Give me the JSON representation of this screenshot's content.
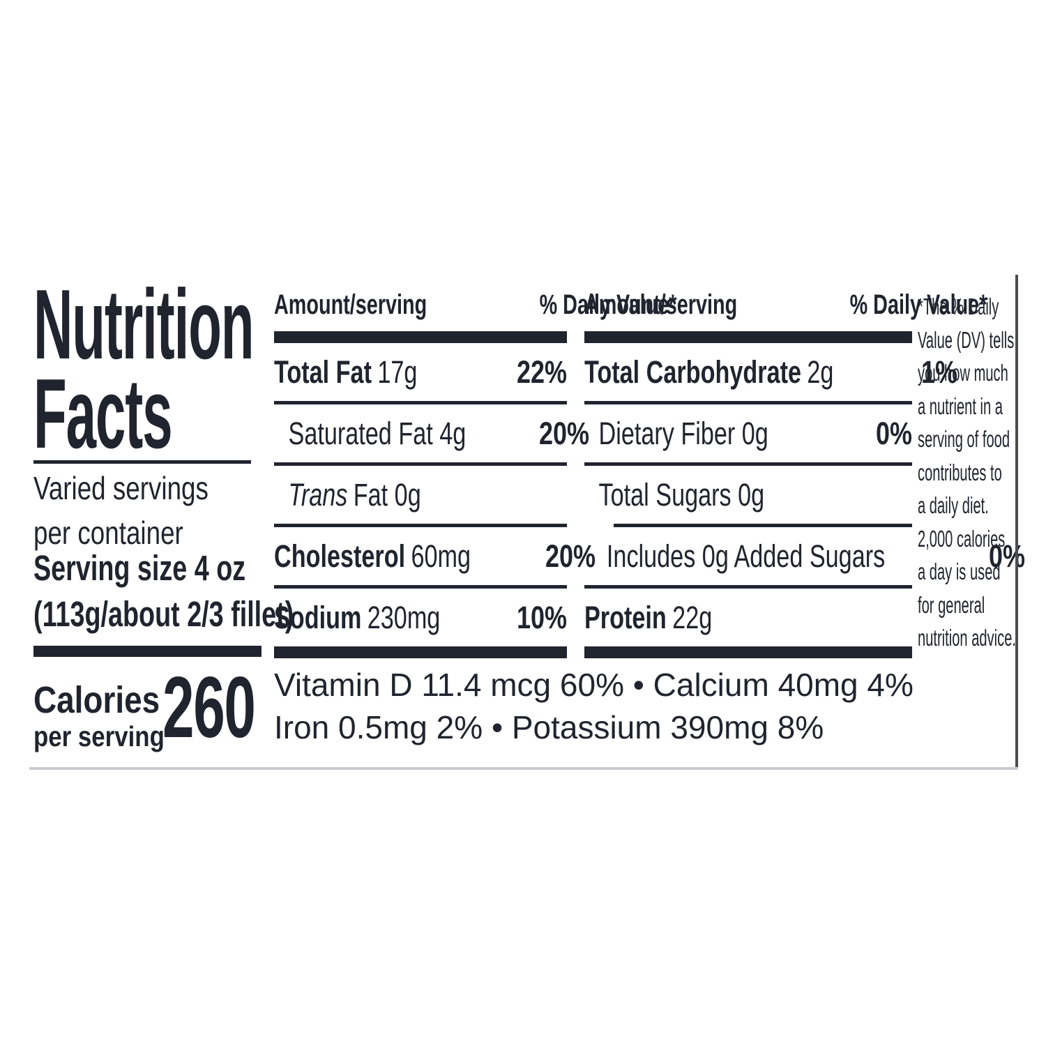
{
  "label": {
    "title": {
      "line1": "Nutrition",
      "line2": "Facts"
    },
    "servings": {
      "line1": "Varied servings",
      "line2": "per container"
    },
    "serving_size": {
      "line1": "Serving size 4 oz",
      "line2": "(113g/about 2/3 fillet)"
    },
    "calories": {
      "word": "Calories",
      "sub": "per serving",
      "value": "260"
    },
    "header": {
      "amount": "Amount/serving",
      "dv": "% Daily Value*"
    },
    "mid": {
      "rows": [
        {
          "bold": "Total Fat",
          "rest": "17g",
          "dv": "22%"
        },
        {
          "plain": "Saturated Fat 4g",
          "dv": "20%"
        },
        {
          "italic": "Trans",
          "rest": "Fat 0g",
          "dv": ""
        },
        {
          "bold": "Cholesterol",
          "rest": "60mg",
          "dv": "20%"
        },
        {
          "bold": "Sodium",
          "rest": "230mg",
          "dv": "10%"
        }
      ]
    },
    "right": {
      "rows": [
        {
          "bold": "Total Carbohydrate",
          "rest": "2g",
          "dv": "1%"
        },
        {
          "plain": "Dietary Fiber 0g",
          "dv": "0%"
        },
        {
          "plain": "Total Sugars 0g",
          "dv": ""
        },
        {
          "plain": "Includes 0g Added Sugars",
          "dv": "0%"
        },
        {
          "bold": "Protein",
          "rest": "22g",
          "dv": ""
        }
      ]
    },
    "micronutrients": {
      "line1": "Vitamin D 11.4 mcg 60% • Calcium 40mg 4%",
      "line2": "Iron 0.5mg 2% • Potassium 390mg 8%"
    },
    "footnote": "*The % Daily\nValue (DV) tells\nyou how much\na nutrient in a\nserving of food\ncontributes to\na daily diet.\n2,000 calories\na day is used\nfor general\nnutrition advice.",
    "colors": {
      "ink": "#20242e",
      "divider_gray": "#c9cdd1",
      "border_gray": "#4b4d51"
    }
  }
}
